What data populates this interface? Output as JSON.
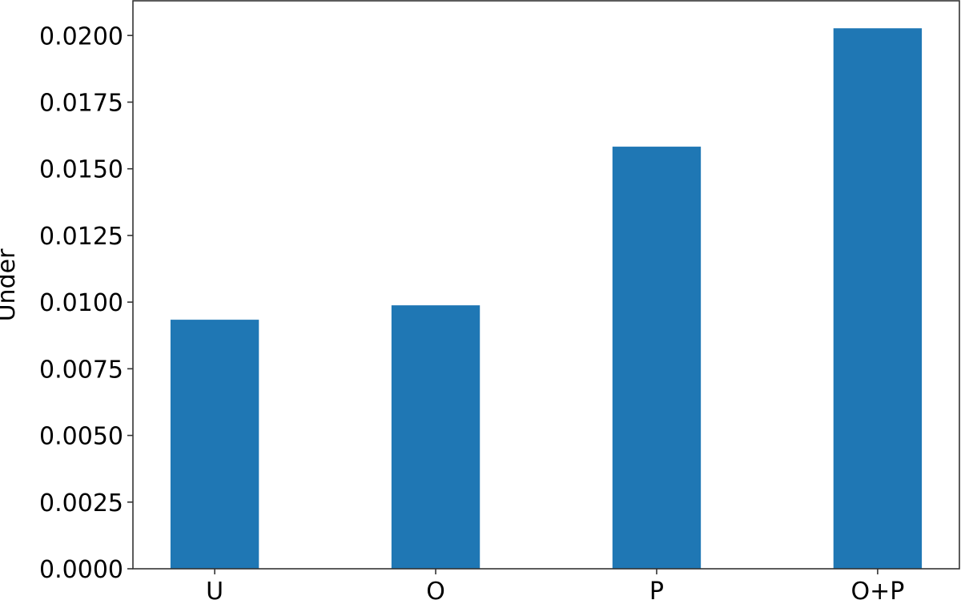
{
  "chart_data": {
    "type": "bar",
    "title": "",
    "xlabel": "",
    "ylabel": "Under",
    "categories": [
      "U",
      "O",
      "P",
      "O+P"
    ],
    "values": [
      0.00934,
      0.00988,
      0.01583,
      0.02027
    ],
    "ylim": [
      0,
      0.0213
    ],
    "yticks": [
      "0.0000",
      "0.0025",
      "0.0050",
      "0.0075",
      "0.0100",
      "0.0125",
      "0.0150",
      "0.0175",
      "0.0200"
    ],
    "grid": false,
    "bar_color": "#1f77b4"
  }
}
